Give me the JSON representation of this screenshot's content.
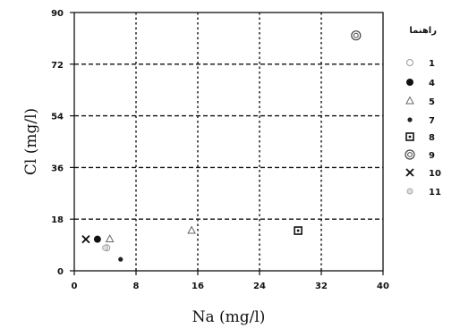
{
  "chart_data": {
    "type": "scatter",
    "title": "",
    "xlabel": "Na (mg/l)",
    "ylabel": "Cl (mg/l)",
    "xlim": [
      0,
      40
    ],
    "ylim": [
      0,
      90
    ],
    "xticks": [
      0,
      8,
      16,
      24,
      32,
      40
    ],
    "yticks": [
      0,
      18,
      36,
      54,
      72,
      90
    ],
    "grid": "dashed major gridlines",
    "legend_placement": "right",
    "legend_title": "راهنما",
    "series": [
      {
        "name": "1",
        "marker": "open-circle-small",
        "x": 4.2,
        "y": 8
      },
      {
        "name": "4",
        "marker": "filled-circle",
        "x": 3.0,
        "y": 11
      },
      {
        "name": "5",
        "marker": "open-triangle",
        "x": 4.6,
        "y": 11,
        "extra_points": [
          {
            "x": 15.2,
            "y": 14
          }
        ]
      },
      {
        "name": "7",
        "marker": "small-dot",
        "x": 6.0,
        "y": 4
      },
      {
        "name": "8",
        "marker": "open-square-dot",
        "x": 29.0,
        "y": 14
      },
      {
        "name": "9",
        "marker": "circle-dot",
        "x": 36.5,
        "y": 82
      },
      {
        "name": "10",
        "marker": "x-cross",
        "x": 1.5,
        "y": 11
      },
      {
        "name": "11",
        "marker": "light-circle",
        "x": 4.0,
        "y": 8
      }
    ]
  }
}
